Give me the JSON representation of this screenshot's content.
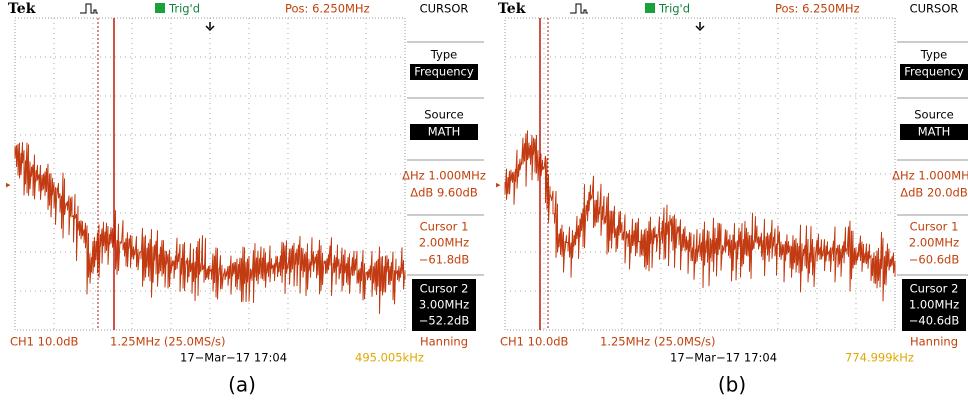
{
  "panels": [
    {
      "header": {
        "brand": "Tek",
        "trigger": "Trig'd",
        "position": "Pos: 6.250MHz",
        "menu_title": "CURSOR"
      },
      "menu": {
        "type_label": "Type",
        "type_value": "Frequency",
        "source_label": "Source",
        "source_value": "MATH",
        "delta_hz": "ΔHz 1.000MHz",
        "delta_db": "ΔdB 9.60dB",
        "cursor1": {
          "label": "Cursor 1",
          "freq": "2.00MHz",
          "level": "−61.8dB"
        },
        "cursor2": {
          "label": "Cursor 2",
          "freq": "3.00MHz",
          "level": "−52.2dB"
        }
      },
      "footer": {
        "channel": "CH1 10.0dB",
        "span": "1.25MHz (25.0MS/s)",
        "window": "Hanning",
        "timestamp": "17−Mar−17 17:04",
        "counter": "495.005kHz"
      },
      "caption": "(a)"
    },
    {
      "header": {
        "brand": "Tek",
        "trigger": "Trig'd",
        "position": "Pos: 6.250MHz",
        "menu_title": "CURSOR"
      },
      "menu": {
        "type_label": "Type",
        "type_value": "Frequency",
        "source_label": "Source",
        "source_value": "MATH",
        "delta_hz": "ΔHz 1.000MHz",
        "delta_db": "ΔdB 20.0dB",
        "cursor1": {
          "label": "Cursor 1",
          "freq": "2.00MHz",
          "level": "−60.6dB"
        },
        "cursor2": {
          "label": "Cursor 2",
          "freq": "1.00MHz",
          "level": "−40.6dB"
        }
      },
      "footer": {
        "channel": "CH1 10.0dB",
        "span": "1.25MHz (25.0MS/s)",
        "window": "Hanning",
        "timestamp": "17−Mar−17 17:04",
        "counter": "774.999kHz"
      },
      "caption": "(b)"
    }
  ]
}
